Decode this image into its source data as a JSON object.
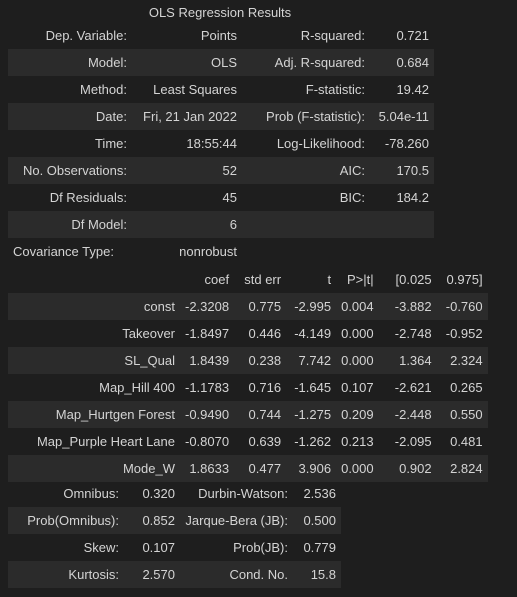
{
  "title": "OLS Regression Results",
  "summary": [
    {
      "l1": "Dep. Variable:",
      "v1": "Points",
      "l2": "R-squared:",
      "v2": "0.721"
    },
    {
      "l1": "Model:",
      "v1": "OLS",
      "l2": "Adj. R-squared:",
      "v2": "0.684"
    },
    {
      "l1": "Method:",
      "v1": "Least Squares",
      "l2": "F-statistic:",
      "v2": "19.42"
    },
    {
      "l1": "Date:",
      "v1": "Fri, 21 Jan 2022",
      "l2": "Prob (F-statistic):",
      "v2": "5.04e-11"
    },
    {
      "l1": "Time:",
      "v1": "18:55:44",
      "l2": "Log-Likelihood:",
      "v2": "-78.260"
    },
    {
      "l1": "No. Observations:",
      "v1": "52",
      "l2": "AIC:",
      "v2": "170.5"
    },
    {
      "l1": "Df Residuals:",
      "v1": "45",
      "l2": "BIC:",
      "v2": "184.2"
    },
    {
      "l1": "Df Model:",
      "v1": "6",
      "l2": "",
      "v2": ""
    },
    {
      "l1": "Covariance Type:",
      "v1": "nonrobust",
      "l2": "",
      "v2": ""
    }
  ],
  "coef_headers": [
    "",
    "coef",
    "std err",
    "t",
    "P>|t|",
    "[0.025",
    "0.975]"
  ],
  "coef_rows": [
    [
      "const",
      "-2.3208",
      "0.775",
      "-2.995",
      "0.004",
      "-3.882",
      "-0.760"
    ],
    [
      "Takeover",
      "-1.8497",
      "0.446",
      "-4.149",
      "0.000",
      "-2.748",
      "-0.952"
    ],
    [
      "SL_Qual",
      "1.8439",
      "0.238",
      "7.742",
      "0.000",
      "1.364",
      "2.324"
    ],
    [
      "Map_Hill 400",
      "-1.1783",
      "0.716",
      "-1.645",
      "0.107",
      "-2.621",
      "0.265"
    ],
    [
      "Map_Hurtgen Forest",
      "-0.9490",
      "0.744",
      "-1.275",
      "0.209",
      "-2.448",
      "0.550"
    ],
    [
      "Map_Purple Heart Lane",
      "-0.8070",
      "0.639",
      "-1.262",
      "0.213",
      "-2.095",
      "0.481"
    ],
    [
      "Mode_W",
      "1.8633",
      "0.477",
      "3.906",
      "0.000",
      "0.902",
      "2.824"
    ]
  ],
  "diagnostics": [
    {
      "l1": "Omnibus:",
      "v1": "0.320",
      "l2": "Durbin-Watson:",
      "v2": "2.536"
    },
    {
      "l1": "Prob(Omnibus):",
      "v1": "0.852",
      "l2": "Jarque-Bera (JB):",
      "v2": "0.500"
    },
    {
      "l1": "Skew:",
      "v1": "0.107",
      "l2": "Prob(JB):",
      "v2": "0.779"
    },
    {
      "l1": "Kurtosis:",
      "v1": "2.570",
      "l2": "Cond. No.",
      "v2": "15.8"
    }
  ]
}
